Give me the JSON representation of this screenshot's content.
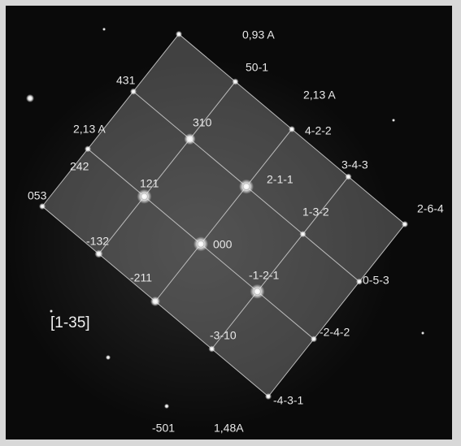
{
  "labels": [
    "0,93 A",
    "50-1",
    "431",
    "2,13 A",
    "310",
    "2,13 A",
    "4-2-2",
    "242",
    "3-4-3",
    "2-1-1",
    "121",
    "053",
    "2-6-4",
    "1-3-2",
    "-132",
    "000",
    "0-5-3",
    "-211",
    "-1-2-1",
    "-2-4-2",
    "-3-10",
    "-4-3-1",
    "-501",
    "1,48A"
  ],
  "zone_axis": "[1-35]"
}
